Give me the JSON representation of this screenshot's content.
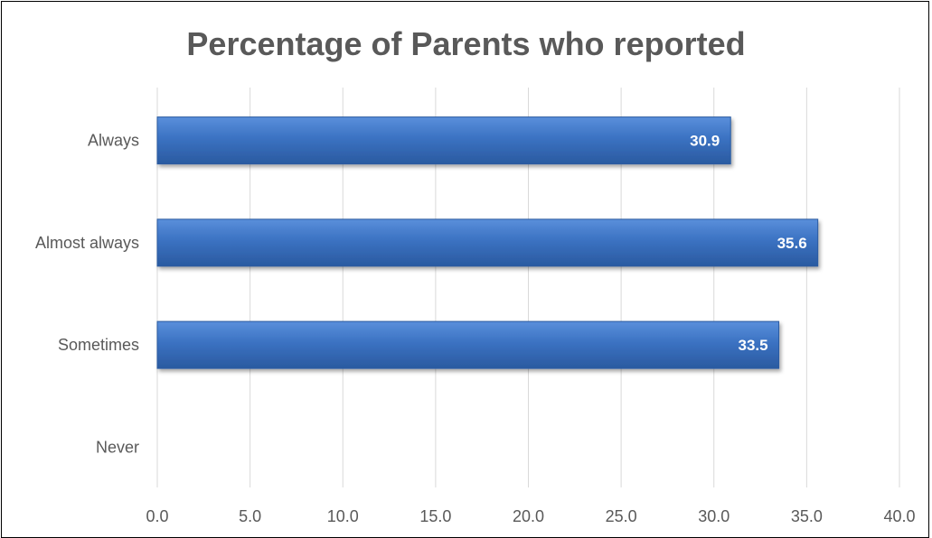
{
  "chart_data": {
    "type": "bar",
    "orientation": "horizontal",
    "title": "Percentage of Parents who reported",
    "categories": [
      "Always",
      "Almost always",
      "Sometimes",
      "Never"
    ],
    "values": [
      30.9,
      35.6,
      33.5,
      null
    ],
    "value_labels": [
      "30.9",
      "35.6",
      "33.5",
      ""
    ],
    "xlim": [
      0,
      40
    ],
    "x_ticks": [
      0,
      5,
      10,
      15,
      20,
      25,
      30,
      35,
      40
    ],
    "x_tick_labels": [
      "0.0",
      "5.0",
      "10.0",
      "15.0",
      "20.0",
      "25.0",
      "30.0",
      "35.0",
      "40.0"
    ],
    "grid": "vertical",
    "legend": "none",
    "colors": {
      "bar": "#3b72c2",
      "bar_light": "#5a8fdb",
      "bar_dark": "#2a5aa0",
      "gridline": "#d9d9d9",
      "text": "#595959"
    }
  }
}
